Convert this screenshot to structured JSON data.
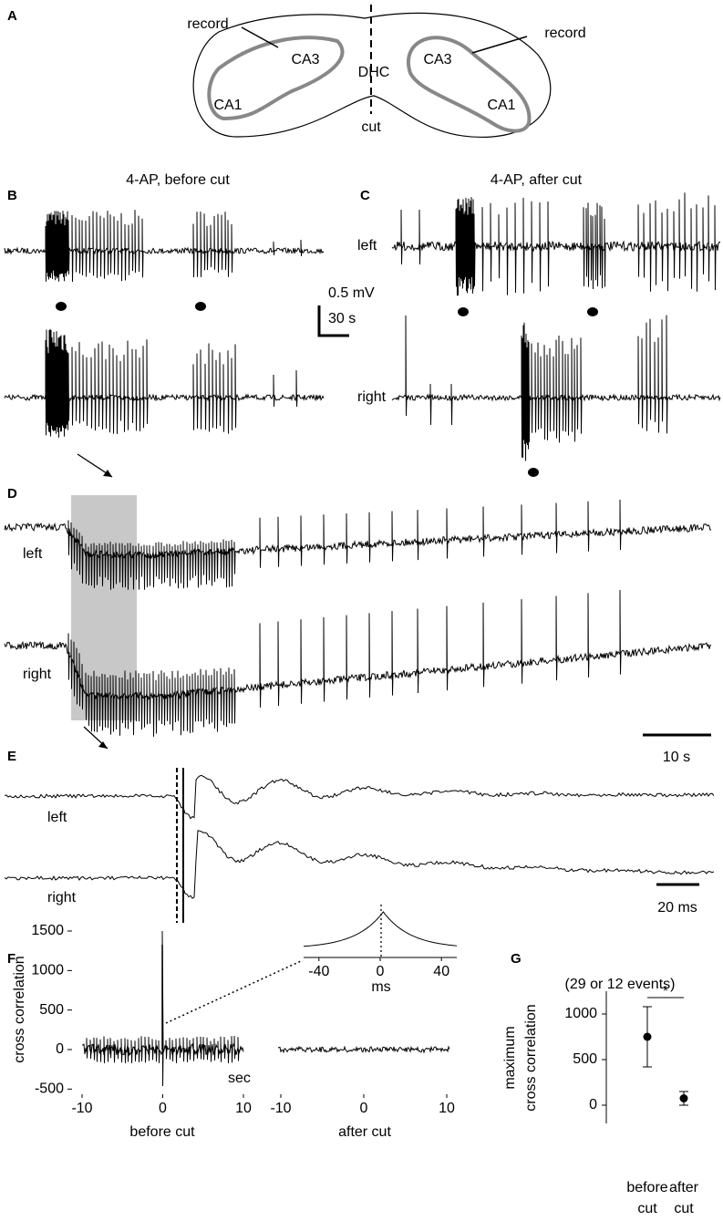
{
  "figure": {
    "panel_labels": [
      "A",
      "B",
      "C",
      "D",
      "E",
      "F",
      "G"
    ],
    "A": {
      "labels": [
        "record",
        "record",
        "CA3",
        "DHC",
        "CA3",
        "CA1",
        "CA1",
        "cut"
      ]
    },
    "B": {
      "title": "4-AP, before cut"
    },
    "C": {
      "title": "4-AP, after cut",
      "trace_labels": [
        "left",
        "right"
      ]
    },
    "BC_scale": [
      "0.5 mV",
      "30 s"
    ],
    "D": {
      "trace_labels": [
        "left",
        "right"
      ],
      "scale": "10 s"
    },
    "E": {
      "trace_labels": [
        "left",
        "right"
      ],
      "scale": "20 ms"
    },
    "F": {
      "ylabel": "cross correlation"
    }
  },
  "chart_data": [
    {
      "type": "line",
      "xlabel": "before cut",
      "unit": "sec",
      "xlim": [
        -10,
        10
      ],
      "ylim": [
        -500,
        1500
      ],
      "xticks": [
        -10,
        0,
        10
      ],
      "yticks": [
        -500,
        0,
        500,
        1000,
        1500
      ]
    },
    {
      "type": "line",
      "xlabel": "after cut",
      "xlim": [
        -10,
        10
      ],
      "ylim": [
        -500,
        1500
      ],
      "xticks": [
        -10,
        0,
        10
      ]
    },
    {
      "type": "line",
      "xlabel": "ms",
      "xlim": [
        -50,
        50
      ],
      "xticks": [
        -40,
        0,
        40
      ]
    },
    {
      "type": "errorbar",
      "title": "(29 or 12 events)",
      "ylabel": [
        "maximum",
        "cross correlation"
      ],
      "categories": [
        [
          "before",
          "cut"
        ],
        [
          "after",
          "cut"
        ]
      ],
      "values": [
        750,
        75
      ],
      "errors": [
        330,
        75
      ],
      "ylim": [
        -200,
        1250
      ],
      "yticks": [
        0,
        500,
        1000
      ],
      "significance": "*"
    }
  ]
}
